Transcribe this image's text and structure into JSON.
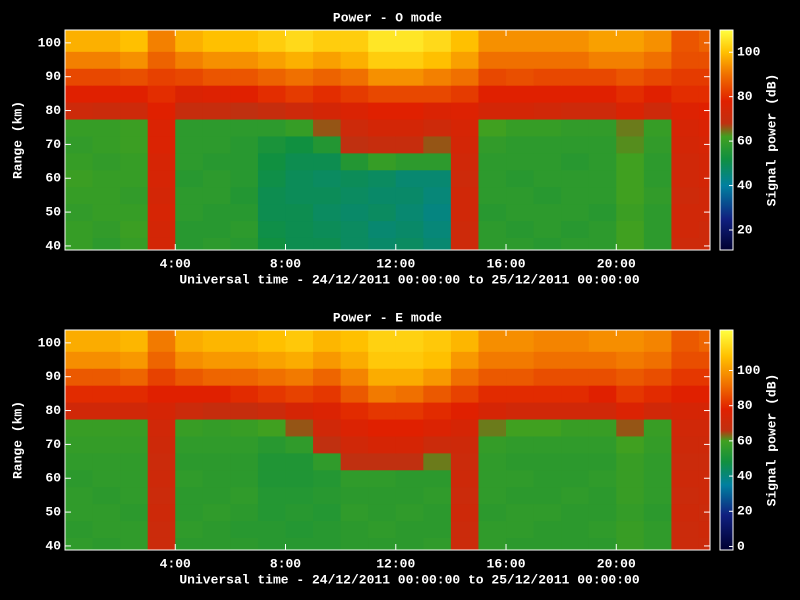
{
  "chart_data": [
    {
      "type": "heatmap",
      "title": "Power - O mode",
      "xlabel": "Universal time - 24/12/2011 00:00:00 to 25/12/2011 00:00:00",
      "ylabel": "Range (km)",
      "x": [
        0,
        1,
        2,
        3,
        4,
        5,
        6,
        7,
        8,
        9,
        10,
        11,
        12,
        13,
        14,
        15,
        16,
        17,
        18,
        19,
        20,
        21,
        22,
        23
      ],
      "y": [
        40,
        45,
        50,
        55,
        60,
        65,
        70,
        75,
        80,
        85,
        90,
        95,
        100
      ],
      "values": [
        [
          60,
          58,
          60,
          74,
          57,
          58,
          57,
          52,
          50,
          50,
          48,
          47,
          48,
          46,
          72,
          58,
          58,
          57,
          58,
          58,
          62,
          58,
          72,
          72
        ],
        [
          60,
          59,
          61,
          74,
          57,
          57,
          58,
          51,
          50,
          49,
          48,
          46,
          47,
          45,
          72,
          58,
          57,
          58,
          57,
          58,
          62,
          58,
          73,
          72
        ],
        [
          59,
          60,
          60,
          75,
          58,
          57,
          57,
          50,
          50,
          48,
          47,
          48,
          46,
          44,
          73,
          57,
          58,
          58,
          58,
          57,
          61,
          58,
          73,
          73
        ],
        [
          60,
          60,
          59,
          74,
          58,
          58,
          56,
          50,
          49,
          49,
          48,
          47,
          47,
          45,
          73,
          58,
          58,
          57,
          58,
          58,
          62,
          59,
          72,
          73
        ],
        [
          61,
          60,
          60,
          75,
          57,
          58,
          57,
          51,
          49,
          48,
          49,
          48,
          46,
          46,
          72,
          58,
          57,
          58,
          58,
          58,
          62,
          58,
          73,
          74
        ],
        [
          60,
          59,
          60,
          75,
          58,
          57,
          57,
          52,
          50,
          50,
          56,
          60,
          58,
          58,
          73,
          58,
          58,
          58,
          57,
          58,
          62,
          58,
          73,
          74
        ],
        [
          59,
          60,
          61,
          76,
          58,
          58,
          57,
          54,
          52,
          56,
          68,
          70,
          70,
          66,
          74,
          59,
          58,
          58,
          58,
          58,
          63,
          59,
          74,
          75
        ],
        [
          60,
          60,
          61,
          76,
          58,
          58,
          58,
          58,
          60,
          66,
          72,
          74,
          74,
          72,
          75,
          62,
          60,
          60,
          59,
          59,
          64,
          60,
          75,
          76
        ],
        [
          72,
          71,
          72,
          78,
          70,
          70,
          68,
          70,
          72,
          74,
          76,
          78,
          78,
          76,
          77,
          74,
          74,
          73,
          72,
          72,
          76,
          72,
          77,
          78
        ],
        [
          78,
          78,
          78,
          80,
          76,
          77,
          78,
          80,
          82,
          80,
          82,
          84,
          84,
          84,
          82,
          78,
          78,
          78,
          78,
          78,
          80,
          78,
          80,
          80
        ],
        [
          84,
          84,
          85,
          83,
          84,
          86,
          86,
          88,
          90,
          88,
          90,
          94,
          94,
          92,
          90,
          84,
          85,
          84,
          84,
          84,
          86,
          84,
          82,
          82
        ],
        [
          92,
          92,
          94,
          88,
          92,
          94,
          94,
          96,
          98,
          96,
          98,
          102,
          102,
          100,
          96,
          90,
          90,
          90,
          90,
          92,
          92,
          90,
          85,
          85
        ],
        [
          98,
          98,
          100,
          92,
          98,
          100,
          100,
          102,
          104,
          102,
          102,
          106,
          106,
          104,
          100,
          94,
          94,
          94,
          94,
          96,
          96,
          94,
          86,
          88
        ]
      ],
      "xlim": [
        0,
        23.4
      ],
      "ylim": [
        38.8,
        103.8
      ],
      "xticks": [
        {
          "value": 4,
          "label": "4:00"
        },
        {
          "value": 8,
          "label": "8:00"
        },
        {
          "value": 12,
          "label": "12:00"
        },
        {
          "value": 16,
          "label": "16:00"
        },
        {
          "value": 20,
          "label": "20:00"
        }
      ],
      "yticks": [
        40,
        50,
        60,
        70,
        80,
        90,
        100
      ],
      "colorbar": {
        "label": "Signal power (dB)",
        "zlim": [
          11,
          110
        ],
        "ticks": [
          20,
          40,
          60,
          80,
          100
        ],
        "colorscale": [
          [
            11,
            "#000030"
          ],
          [
            25,
            "#102080"
          ],
          [
            40,
            "#0080a0"
          ],
          [
            52,
            "#109040"
          ],
          [
            62,
            "#40a020"
          ],
          [
            68,
            "#c03010"
          ],
          [
            78,
            "#e02000"
          ],
          [
            90,
            "#f07000"
          ],
          [
            100,
            "#ffc000"
          ],
          [
            110,
            "#ffff40"
          ]
        ]
      }
    },
    {
      "type": "heatmap",
      "title": "Power - E mode",
      "xlabel": "Universal time - 24/12/2011 00:00:00 to 25/12/2011 00:00:00",
      "ylabel": "Range (km)",
      "x": [
        0,
        1,
        2,
        3,
        4,
        5,
        6,
        7,
        8,
        9,
        10,
        11,
        12,
        13,
        14,
        15,
        16,
        17,
        18,
        19,
        20,
        21,
        22,
        23
      ],
      "y": [
        40,
        45,
        50,
        55,
        60,
        65,
        70,
        75,
        80,
        85,
        90,
        95,
        100
      ],
      "values": [
        [
          56,
          55,
          56,
          70,
          55,
          55,
          55,
          54,
          54,
          54,
          55,
          55,
          55,
          56,
          70,
          56,
          55,
          55,
          55,
          55,
          58,
          56,
          70,
          70
        ],
        [
          55,
          56,
          56,
          70,
          56,
          55,
          54,
          54,
          53,
          54,
          55,
          56,
          55,
          55,
          70,
          56,
          56,
          55,
          55,
          56,
          58,
          56,
          70,
          71
        ],
        [
          56,
          56,
          55,
          71,
          55,
          56,
          55,
          53,
          54,
          53,
          56,
          55,
          56,
          55,
          71,
          55,
          56,
          56,
          55,
          55,
          57,
          55,
          71,
          70
        ],
        [
          56,
          55,
          56,
          70,
          55,
          55,
          56,
          53,
          53,
          54,
          55,
          55,
          55,
          56,
          70,
          56,
          55,
          55,
          56,
          55,
          58,
          56,
          70,
          71
        ],
        [
          55,
          56,
          56,
          71,
          56,
          55,
          55,
          52,
          52,
          53,
          56,
          56,
          55,
          55,
          71,
          56,
          56,
          55,
          55,
          56,
          58,
          56,
          71,
          71
        ],
        [
          56,
          56,
          56,
          70,
          55,
          55,
          55,
          52,
          52,
          56,
          66,
          66,
          66,
          62,
          70,
          56,
          55,
          55,
          55,
          55,
          58,
          56,
          70,
          70
        ],
        [
          57,
          57,
          57,
          71,
          56,
          56,
          56,
          54,
          56,
          66,
          72,
          74,
          74,
          70,
          71,
          57,
          56,
          56,
          56,
          56,
          60,
          57,
          71,
          71
        ],
        [
          58,
          58,
          58,
          72,
          58,
          57,
          58,
          60,
          64,
          72,
          76,
          78,
          78,
          76,
          74,
          62,
          60,
          60,
          58,
          58,
          64,
          58,
          72,
          72
        ],
        [
          72,
          72,
          72,
          74,
          70,
          68,
          68,
          70,
          74,
          76,
          80,
          82,
          82,
          80,
          78,
          74,
          72,
          72,
          72,
          72,
          76,
          72,
          74,
          74
        ],
        [
          80,
          80,
          80,
          78,
          78,
          78,
          80,
          82,
          84,
          82,
          88,
          94,
          92,
          88,
          84,
          80,
          80,
          80,
          80,
          78,
          82,
          80,
          78,
          78
        ],
        [
          88,
          88,
          90,
          84,
          88,
          90,
          90,
          92,
          94,
          90,
          96,
          104,
          104,
          100,
          92,
          88,
          88,
          86,
          86,
          86,
          88,
          86,
          82,
          82
        ],
        [
          98,
          98,
          100,
          90,
          98,
          100,
          100,
          102,
          104,
          100,
          104,
          110,
          110,
          108,
          100,
          94,
          94,
          92,
          92,
          92,
          94,
          92,
          86,
          86
        ],
        [
          104,
          104,
          106,
          94,
          104,
          106,
          106,
          108,
          110,
          106,
          108,
          112,
          112,
          110,
          106,
          98,
          98,
          96,
          96,
          98,
          98,
          96,
          88,
          90
        ]
      ],
      "xlim": [
        0,
        23.4
      ],
      "ylim": [
        38.8,
        103.8
      ],
      "xticks": [
        {
          "value": 4,
          "label": "4:00"
        },
        {
          "value": 8,
          "label": "8:00"
        },
        {
          "value": 12,
          "label": "12:00"
        },
        {
          "value": 16,
          "label": "16:00"
        },
        {
          "value": 20,
          "label": "20:00"
        }
      ],
      "yticks": [
        40,
        50,
        60,
        70,
        80,
        90,
        100
      ],
      "colorbar": {
        "label": "Signal power (dB)",
        "zlim": [
          -2,
          123
        ],
        "ticks": [
          0,
          20,
          40,
          60,
          80,
          100
        ],
        "colorscale": [
          [
            -2,
            "#000030"
          ],
          [
            18,
            "#102080"
          ],
          [
            35,
            "#0080a0"
          ],
          [
            48,
            "#109040"
          ],
          [
            60,
            "#40a020"
          ],
          [
            66,
            "#c03010"
          ],
          [
            78,
            "#e02000"
          ],
          [
            92,
            "#f07000"
          ],
          [
            108,
            "#ffc000"
          ],
          [
            123,
            "#ffff40"
          ]
        ]
      }
    }
  ]
}
